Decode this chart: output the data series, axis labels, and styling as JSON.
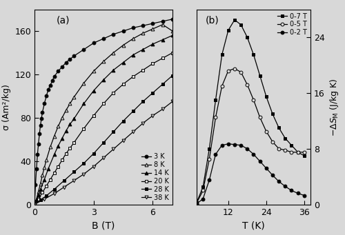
{
  "panel_a": {
    "label": "(a)",
    "xlabel": "B (T)",
    "ylabel": "σ (Am²/kg)",
    "xlim": [
      0,
      7
    ],
    "ylim": [
      0,
      180
    ],
    "yticks": [
      0,
      40,
      80,
      120,
      160
    ],
    "xticks": [
      0,
      3,
      6
    ],
    "curves": [
      {
        "label": "3 K",
        "marker": "o",
        "fillstyle": "full",
        "B": [
          0.0,
          0.05,
          0.1,
          0.15,
          0.2,
          0.25,
          0.3,
          0.35,
          0.4,
          0.5,
          0.6,
          0.7,
          0.8,
          0.9,
          1.0,
          1.2,
          1.4,
          1.6,
          1.8,
          2.0,
          2.5,
          3.0,
          3.5,
          4.0,
          4.5,
          5.0,
          5.5,
          6.0,
          6.5,
          7.0
        ],
        "sigma": [
          0,
          18,
          33,
          46,
          56,
          65,
          73,
          79,
          85,
          93,
          100,
          106,
          110,
          114,
          118,
          123,
          127,
          131,
          134,
          137,
          143,
          149,
          153,
          157,
          160,
          163,
          165,
          167,
          169,
          171
        ]
      },
      {
        "label": "8 K",
        "marker": "^",
        "fillstyle": "none",
        "B": [
          0.0,
          0.1,
          0.2,
          0.3,
          0.4,
          0.5,
          0.6,
          0.8,
          1.0,
          1.2,
          1.4,
          1.6,
          1.8,
          2.0,
          2.5,
          3.0,
          3.5,
          4.0,
          4.5,
          5.0,
          5.5,
          6.0,
          6.5,
          7.0
        ],
        "sigma": [
          0,
          5,
          12,
          19,
          27,
          34,
          41,
          53,
          63,
          72,
          80,
          87,
          93,
          99,
          112,
          123,
          132,
          140,
          147,
          153,
          158,
          162,
          166,
          160
        ]
      },
      {
        "label": "14 K",
        "marker": "^",
        "fillstyle": "full",
        "B": [
          0.0,
          0.1,
          0.2,
          0.3,
          0.5,
          0.7,
          1.0,
          1.2,
          1.4,
          1.6,
          1.8,
          2.0,
          2.5,
          3.0,
          3.5,
          4.0,
          4.5,
          5.0,
          5.5,
          6.0,
          6.5,
          7.0
        ],
        "sigma": [
          0,
          4,
          9,
          14,
          23,
          33,
          46,
          54,
          61,
          68,
          74,
          79,
          93,
          105,
          115,
          124,
          131,
          138,
          143,
          148,
          152,
          156
        ]
      },
      {
        "label": "20 K",
        "marker": "s",
        "fillstyle": "none",
        "B": [
          0.0,
          0.2,
          0.4,
          0.6,
          0.8,
          1.0,
          1.2,
          1.4,
          1.6,
          1.8,
          2.0,
          2.5,
          3.0,
          3.5,
          4.0,
          4.5,
          5.0,
          5.5,
          6.0,
          6.5,
          7.0
        ],
        "sigma": [
          0,
          5,
          11,
          17,
          23,
          29,
          35,
          41,
          47,
          52,
          57,
          70,
          82,
          93,
          103,
          111,
          118,
          124,
          130,
          135,
          140
        ]
      },
      {
        "label": "28 K",
        "marker": "s",
        "fillstyle": "full",
        "B": [
          0.0,
          0.3,
          0.6,
          1.0,
          1.5,
          2.0,
          2.5,
          3.0,
          3.5,
          4.0,
          4.5,
          5.0,
          5.5,
          6.0,
          6.5,
          7.0
        ],
        "sigma": [
          0,
          4,
          8,
          14,
          22,
          30,
          38,
          47,
          57,
          67,
          77,
          86,
          95,
          103,
          111,
          119
        ]
      },
      {
        "label": "38 K",
        "marker": "v",
        "fillstyle": "none",
        "B": [
          0.0,
          0.5,
          1.0,
          1.5,
          2.0,
          2.5,
          3.0,
          3.5,
          4.0,
          4.5,
          5.0,
          5.5,
          6.0,
          6.5,
          7.0
        ],
        "sigma": [
          0,
          5,
          10,
          16,
          22,
          28,
          35,
          43,
          51,
          59,
          67,
          75,
          82,
          88,
          95
        ]
      }
    ]
  },
  "panel_b": {
    "label": "(b)",
    "xlabel": "T (K)",
    "ylabel_right": "$-\\Delta S_{\\mathrm{M}}$ (J/kg K)",
    "xlim": [
      2,
      38
    ],
    "ylim": [
      0,
      28
    ],
    "yticks": [
      0,
      8,
      16,
      24
    ],
    "xticks": [
      12,
      24,
      36
    ],
    "curves": [
      {
        "label": "0-7 T",
        "marker": "s",
        "fillstyle": "full",
        "T": [
          2,
          4,
          6,
          8,
          10,
          12,
          14,
          16,
          18,
          20,
          22,
          24,
          26,
          28,
          30,
          32,
          34,
          36
        ],
        "dSM": [
          0.3,
          2.5,
          8.0,
          15.0,
          21.5,
          25.0,
          26.5,
          25.8,
          24.0,
          21.5,
          18.5,
          15.5,
          13.0,
          11.0,
          9.5,
          8.5,
          7.5,
          7.0
        ]
      },
      {
        "label": "0-5 T",
        "marker": "o",
        "fillstyle": "none",
        "T": [
          2,
          4,
          6,
          8,
          10,
          12,
          14,
          16,
          18,
          20,
          22,
          24,
          26,
          28,
          30,
          32,
          34,
          36
        ],
        "dSM": [
          0.2,
          2.0,
          6.5,
          12.5,
          17.0,
          19.2,
          19.5,
          19.0,
          17.2,
          15.0,
          12.5,
          10.5,
          9.0,
          8.0,
          7.8,
          7.5,
          7.5,
          7.5
        ]
      },
      {
        "label": "0-2 T",
        "marker": "o",
        "fillstyle": "full",
        "T": [
          2,
          4,
          6,
          8,
          10,
          12,
          14,
          16,
          18,
          20,
          22,
          24,
          26,
          28,
          30,
          32,
          34,
          36
        ],
        "dSM": [
          0.1,
          0.8,
          3.5,
          7.2,
          8.5,
          8.7,
          8.6,
          8.5,
          8.0,
          7.2,
          6.2,
          5.2,
          4.2,
          3.3,
          2.6,
          2.0,
          1.6,
          1.3
        ]
      }
    ]
  },
  "bg_color": "#d8d8d8",
  "fig_bg_color": "#d8d8d8"
}
